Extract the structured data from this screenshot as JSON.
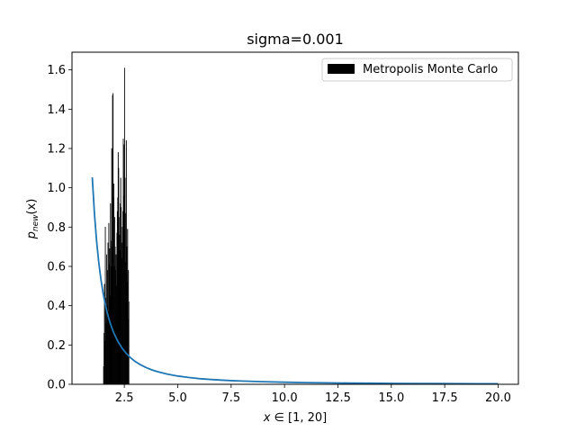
{
  "chart_data": {
    "type": "bar",
    "title": "sigma=0.001",
    "xlabel_main": "x",
    "xlabel_rest": " ∈ [1, 20]",
    "ylabel_main": "p",
    "ylabel_sub": "new",
    "ylabel_rest": "(x)",
    "xlim": [
      0.05,
      20.95
    ],
    "ylim": [
      0,
      1.69
    ],
    "xticks": [
      2.5,
      5.0,
      7.5,
      10.0,
      12.5,
      15.0,
      17.5,
      20.0
    ],
    "xtick_labels": [
      "2.5",
      "5.0",
      "7.5",
      "10.0",
      "12.5",
      "15.0",
      "17.5",
      "20.0"
    ],
    "yticks": [
      0.0,
      0.2,
      0.4,
      0.6,
      0.8,
      1.0,
      1.2,
      1.4,
      1.6
    ],
    "ytick_labels": [
      "0.0",
      "0.2",
      "0.4",
      "0.6",
      "0.8",
      "1.0",
      "1.2",
      "1.4",
      "1.6"
    ],
    "legend": {
      "placement": "top-right",
      "label": "Metropolis Monte Carlo"
    },
    "curve": {
      "color": "#1f77b4",
      "x": [
        1.0,
        1.1,
        1.2,
        1.3,
        1.4,
        1.5,
        1.6,
        1.7,
        1.8,
        1.9,
        2.0,
        2.2,
        2.4,
        2.6,
        2.8,
        3.0,
        3.25,
        3.5,
        3.75,
        4.0,
        4.5,
        5.0,
        5.5,
        6.0,
        6.5,
        7.0,
        7.5,
        8.0,
        9.0,
        10.0,
        11.0,
        12.0,
        13.0,
        14.0,
        15.0,
        16.0,
        17.0,
        18.0,
        19.0,
        20.0
      ],
      "y": [
        1.053,
        0.87,
        0.731,
        0.623,
        0.537,
        0.468,
        0.411,
        0.364,
        0.325,
        0.292,
        0.263,
        0.218,
        0.183,
        0.156,
        0.134,
        0.117,
        0.1,
        0.086,
        0.075,
        0.066,
        0.052,
        0.042,
        0.035,
        0.029,
        0.025,
        0.0215,
        0.0187,
        0.0165,
        0.013,
        0.0105,
        0.0087,
        0.0073,
        0.0062,
        0.0054,
        0.0047,
        0.0041,
        0.0036,
        0.0033,
        0.0029,
        0.0026
      ]
    },
    "histogram": {
      "color": "#000000",
      "bin_width": 0.02,
      "bins": [
        [
          1.52,
          0.09
        ],
        [
          1.54,
          0.26
        ],
        [
          1.56,
          0.51
        ],
        [
          1.58,
          0.22
        ],
        [
          1.6,
          0.8
        ],
        [
          1.62,
          0.44
        ],
        [
          1.64,
          0.31
        ],
        [
          1.66,
          0.66
        ],
        [
          1.68,
          0.4
        ],
        [
          1.7,
          0.58
        ],
        [
          1.72,
          0.72
        ],
        [
          1.74,
          0.37
        ],
        [
          1.76,
          0.82
        ],
        [
          1.78,
          0.61
        ],
        [
          1.8,
          0.69
        ],
        [
          1.82,
          0.45
        ],
        [
          1.84,
          0.92
        ],
        [
          1.86,
          0.73
        ],
        [
          1.88,
          0.6
        ],
        [
          1.9,
          1.2
        ],
        [
          1.92,
          0.7
        ],
        [
          1.94,
          1.47
        ],
        [
          1.96,
          1.48
        ],
        [
          1.98,
          0.95
        ],
        [
          2.0,
          1.02
        ],
        [
          2.02,
          0.6
        ],
        [
          2.04,
          0.85
        ],
        [
          2.06,
          0.7
        ],
        [
          2.08,
          0.58
        ],
        [
          2.1,
          0.66
        ],
        [
          2.12,
          0.5
        ],
        [
          2.14,
          0.77
        ],
        [
          2.16,
          0.88
        ],
        [
          2.18,
          0.95
        ],
        [
          2.2,
          1.18
        ],
        [
          2.22,
          1.1
        ],
        [
          2.24,
          0.85
        ],
        [
          2.26,
          0.76
        ],
        [
          2.28,
          0.68
        ],
        [
          2.3,
          0.92
        ],
        [
          2.32,
          1.05
        ],
        [
          2.34,
          0.9
        ],
        [
          2.36,
          0.72
        ],
        [
          2.38,
          0.64
        ],
        [
          2.4,
          0.8
        ],
        [
          2.42,
          0.88
        ],
        [
          2.44,
          1.25
        ],
        [
          2.46,
          0.96
        ],
        [
          2.48,
          1.22
        ],
        [
          2.5,
          1.61
        ],
        [
          2.52,
          1.05
        ],
        [
          2.54,
          0.62
        ],
        [
          2.56,
          0.87
        ],
        [
          2.58,
          1.24
        ],
        [
          2.6,
          0.7
        ],
        [
          2.62,
          0.52
        ],
        [
          2.64,
          0.79
        ],
        [
          2.66,
          0.33
        ],
        [
          2.68,
          0.58
        ],
        [
          2.7,
          0.42
        ]
      ]
    }
  }
}
